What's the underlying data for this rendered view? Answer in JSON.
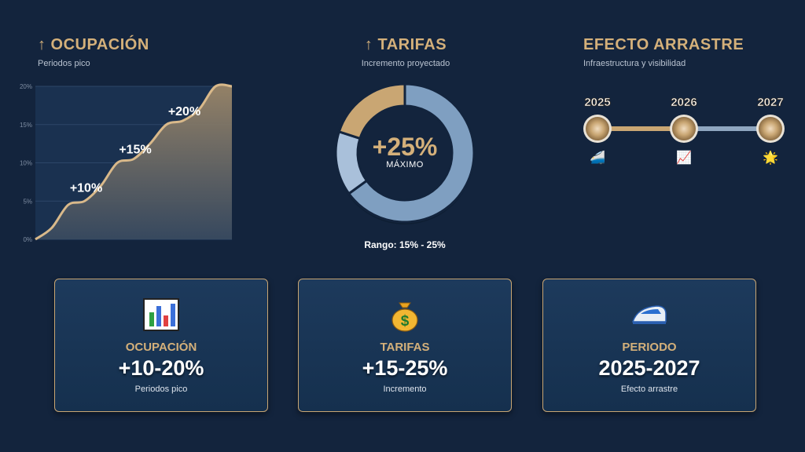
{
  "panels": {
    "ocupacion": {
      "title": "↑ OCUPACIÓN",
      "subtitle": "Periodos pico"
    },
    "tarifas": {
      "title": "↑ TARIFAS",
      "subtitle": "Incremento proyectado"
    },
    "efecto": {
      "title": "EFECTO ARRASTRE",
      "subtitle": "Infraestructura y visibilidad"
    }
  },
  "chart_data": [
    {
      "type": "area",
      "title": "↑ OCUPACIÓN",
      "subtitle": "Periodos pico",
      "x": [
        0,
        1,
        2,
        3,
        4,
        5,
        6,
        7,
        8,
        9,
        10,
        11,
        12
      ],
      "y": [
        0,
        1.5,
        4.5,
        5,
        7,
        10,
        10.5,
        12.5,
        15,
        15.5,
        17,
        20,
        20
      ],
      "ylim": [
        0,
        20
      ],
      "ytick_labels": [
        "0%",
        "5%",
        "10%",
        "15%",
        "20%"
      ],
      "annotations": [
        {
          "label": "+10%",
          "x": 3,
          "y": 5
        },
        {
          "label": "+15%",
          "x": 6,
          "y": 10
        },
        {
          "label": "+20%",
          "x": 9,
          "y": 15
        }
      ],
      "colors": {
        "line": "#d9b98a",
        "fill_top": "#9b8668",
        "fill_bottom": "#3a4b60"
      }
    },
    {
      "type": "pie",
      "title": "↑ TARIFAS",
      "subtitle": "Incremento proyectado",
      "center_value": "+25%",
      "center_label": "MÁXIMO",
      "footer": "Rango: 15% - 25%",
      "slices": [
        {
          "name": "segment-1",
          "value": 65,
          "color": "#7f9fc1"
        },
        {
          "name": "segment-2",
          "value": 15,
          "color": "#a9c0da"
        },
        {
          "name": "segment-3",
          "value": 20,
          "color": "#c9a673"
        }
      ]
    }
  ],
  "timeline": {
    "milestones": [
      {
        "year": "2025",
        "icon": "high-speed-train-icon",
        "glyph": "🚄"
      },
      {
        "year": "2026",
        "icon": "chart-increasing-icon",
        "glyph": "📈"
      },
      {
        "year": "2027",
        "icon": "star-icon",
        "glyph": "🌟"
      }
    ]
  },
  "cards": [
    {
      "icon": "bar-chart-icon",
      "label": "OCUPACIÓN",
      "value": "+10-20%",
      "desc": "Periodos pico"
    },
    {
      "icon": "money-bag-icon",
      "label": "TARIFAS",
      "value": "+15-25%",
      "desc": "Incremento"
    },
    {
      "icon": "high-speed-train-icon",
      "label": "PERIODO",
      "value": "2025-2027",
      "desc": "Efecto arrastre"
    }
  ],
  "colors": {
    "background": "#13243d",
    "gold": "#d4b07a",
    "text": "#ffffff"
  }
}
